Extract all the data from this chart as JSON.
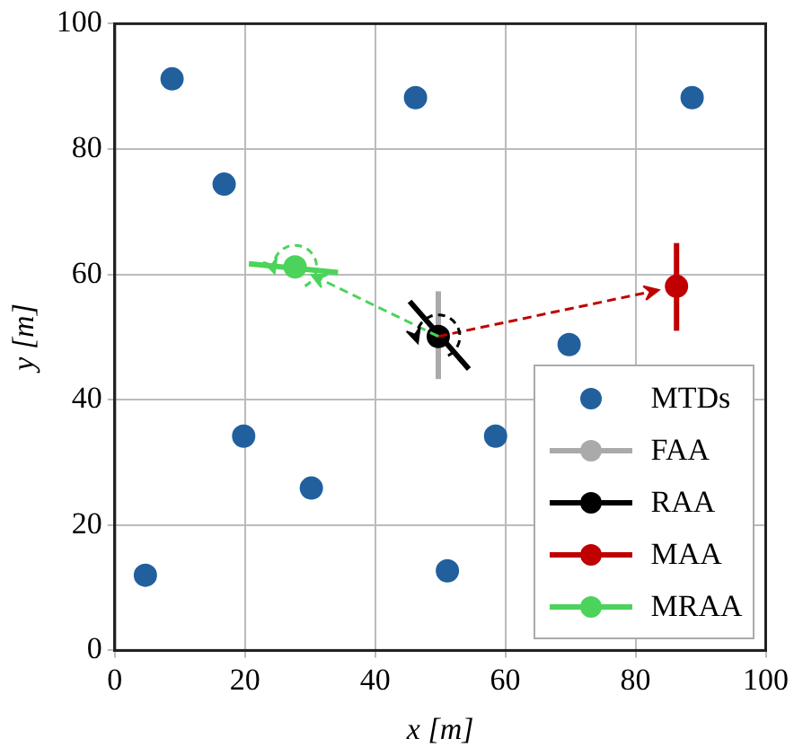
{
  "chart_data": {
    "type": "scatter",
    "xlabel": "x [m]",
    "ylabel": "y [m]",
    "xlim": [
      0,
      100
    ],
    "ylim": [
      0,
      100
    ],
    "xticks": [
      0,
      20,
      40,
      60,
      80,
      100
    ],
    "yticks": [
      0,
      20,
      40,
      60,
      80,
      100
    ],
    "grid": true,
    "legend": "bottom right",
    "marker": "circle",
    "series": [
      {
        "name": "MTDs",
        "color": "#22609d",
        "x": [
          8.8,
          46.2,
          88.7,
          16.8,
          69.8,
          19.8,
          58.5,
          30.2,
          4.7,
          51.1
        ],
        "values": [
          91.2,
          88.2,
          88.2,
          74.4,
          48.8,
          34.2,
          34.2,
          25.9,
          12.0,
          12.7
        ]
      },
      {
        "name": "FAA",
        "color": "#aaaaaa",
        "x": [
          null
        ],
        "values": [
          null
        ]
      },
      {
        "name": "RAA",
        "color": "#000000",
        "x": [
          49.7
        ],
        "values": [
          50.1
        ]
      },
      {
        "name": "MAA",
        "color": "#c00000",
        "x": [
          86.3
        ],
        "values": [
          58.1
        ]
      },
      {
        "name": "MRAA",
        "color": "#4cd35b",
        "x": [
          27.7
        ],
        "values": [
          61.2
        ]
      },
      {
        "type": "line",
        "marker": "none",
        "color": "#aaaaaa",
        "x": [
          49.7,
          49.7
        ],
        "values": [
          43.3,
          57.3
        ]
      },
      {
        "type": "line",
        "marker": "none",
        "color": "#000000",
        "x": [
          45.3,
          54.4
        ],
        "values": [
          55.7,
          44.9
        ]
      },
      {
        "type": "line",
        "marker": "none",
        "color": "#c00000",
        "x": [
          86.3,
          86.3
        ],
        "values": [
          51.0,
          65.0
        ]
      },
      {
        "type": "line",
        "marker": "none",
        "color": "#4cd35b",
        "x": [
          20.6,
          34.3
        ],
        "values": [
          61.7,
          60.3
        ]
      }
    ]
  }
}
